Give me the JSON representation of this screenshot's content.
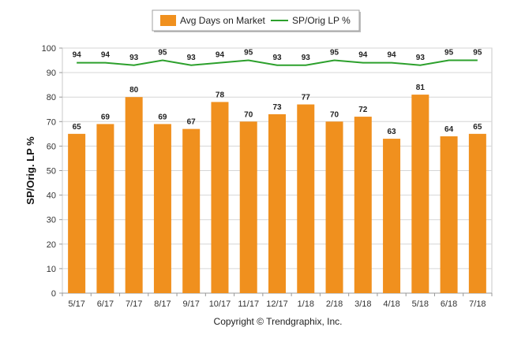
{
  "chart_data": {
    "type": "bar",
    "categories": [
      "5/17",
      "6/17",
      "7/17",
      "8/17",
      "9/17",
      "10/17",
      "11/17",
      "12/17",
      "1/18",
      "2/18",
      "3/18",
      "4/18",
      "5/18",
      "6/18",
      "7/18"
    ],
    "series": [
      {
        "name": "Avg Days on Market",
        "type": "bar",
        "color": "#f0901e",
        "values": [
          65,
          69,
          80,
          69,
          67,
          78,
          70,
          73,
          77,
          70,
          72,
          63,
          81,
          64,
          65
        ]
      },
      {
        "name": "SP/Orig LP %",
        "type": "line",
        "color": "#2ca02c",
        "values": [
          94,
          94,
          93,
          95,
          93,
          94,
          95,
          93,
          93,
          95,
          94,
          94,
          93,
          95,
          95
        ]
      }
    ],
    "ylabel": "SP/Orig. LP %",
    "ylim": [
      0,
      100
    ],
    "yticks": [
      0,
      10,
      20,
      30,
      40,
      50,
      60,
      70,
      80,
      90,
      100
    ],
    "grid": true,
    "legend_position": "top-center",
    "credit": "Copyright © Trendgraphix, Inc."
  }
}
